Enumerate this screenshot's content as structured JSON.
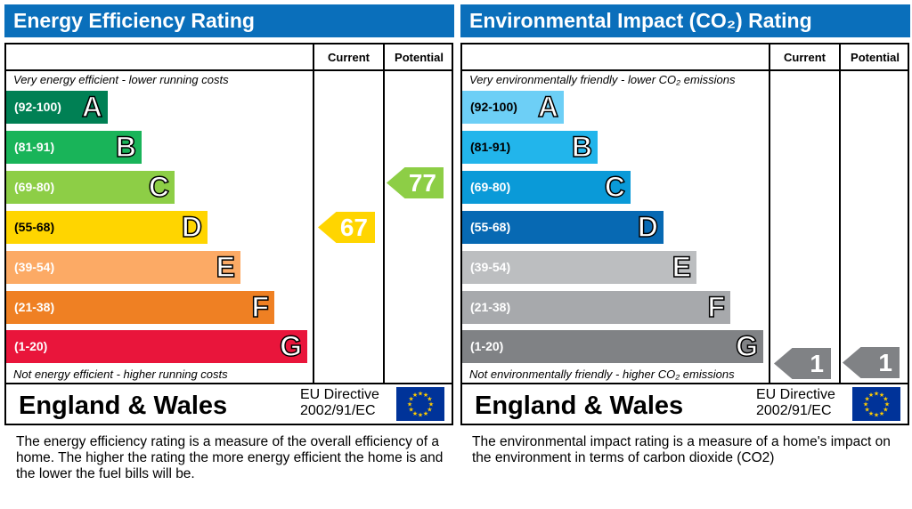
{
  "chart_data": [
    {
      "type": "table",
      "title": "Energy Efficiency Rating",
      "columns": [
        "Current",
        "Potential"
      ],
      "top_note": "Very energy efficient - lower running costs",
      "bottom_note": "Not energy efficient - higher running costs",
      "bands": [
        {
          "range": "(92-100)",
          "letter": "A",
          "color": "#008054"
        },
        {
          "range": "(81-91)",
          "letter": "B",
          "color": "#19b459"
        },
        {
          "range": "(69-80)",
          "letter": "C",
          "color": "#8dce46"
        },
        {
          "range": "(55-68)",
          "letter": "D",
          "color": "#ffd500"
        },
        {
          "range": "(39-54)",
          "letter": "E",
          "color": "#fcaa65"
        },
        {
          "range": "(21-38)",
          "letter": "F",
          "color": "#ef8023"
        },
        {
          "range": "(1-20)",
          "letter": "G",
          "color": "#e9153b"
        }
      ],
      "current": {
        "value": "67",
        "band": "D",
        "color": "#ffd500"
      },
      "potential": {
        "value": "77",
        "band": "C",
        "color": "#8dce46"
      },
      "region": "England & Wales",
      "directive": [
        "EU Directive",
        "2002/91/EC"
      ],
      "description": "The energy efficiency rating is a measure of the overall efficiency of a home.  The higher the rating the more energy efficient the home is and the lower the fuel bills will be."
    },
    {
      "type": "table",
      "title": "Environmental Impact (CO₂) Rating",
      "columns": [
        "Current",
        "Potential"
      ],
      "top_note": "Very environmentally friendly - lower CO₂ emissions",
      "bottom_note": "Not environmentally friendly - higher CO₂ emissions",
      "bands": [
        {
          "range": "(92-100)",
          "letter": "A",
          "color": "#6dcff6"
        },
        {
          "range": "(81-91)",
          "letter": "B",
          "color": "#22b5eb"
        },
        {
          "range": "(69-80)",
          "letter": "C",
          "color": "#0a9ad8"
        },
        {
          "range": "(55-68)",
          "letter": "D",
          "color": "#0769b3"
        },
        {
          "range": "(39-54)",
          "letter": "E",
          "color": "#bcbec0"
        },
        {
          "range": "(21-38)",
          "letter": "F",
          "color": "#a7a9ac"
        },
        {
          "range": "(1-20)",
          "letter": "G",
          "color": "#808285"
        }
      ],
      "current": {
        "value": "1",
        "band": "G",
        "color": "#808285"
      },
      "potential": {
        "value": "1",
        "band": "G",
        "color": "#808285"
      },
      "region": "England & Wales",
      "directive": [
        "EU Directive",
        "2002/91/EC"
      ],
      "description": "The environmental impact rating is a measure of a home's impact on the environment in terms of carbon dioxide (CO2)"
    }
  ]
}
